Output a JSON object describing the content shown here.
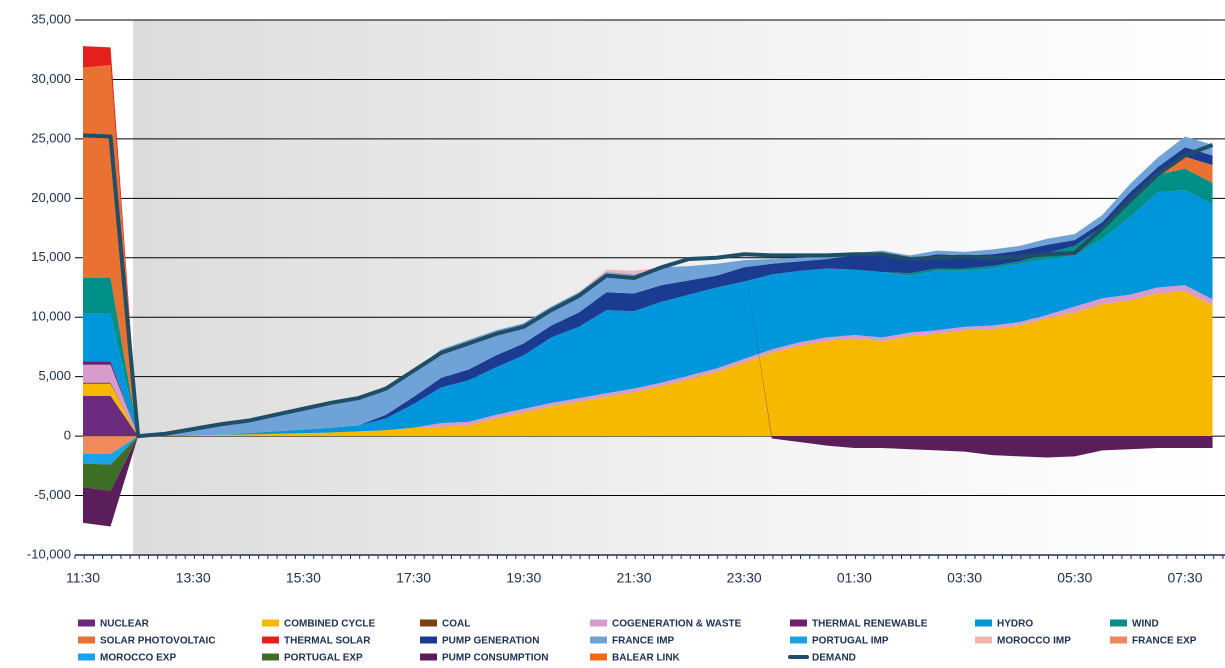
{
  "chart_data": {
    "type": "area",
    "categories": [
      "11:30",
      null,
      null,
      null,
      "13:30",
      null,
      null,
      null,
      "15:30",
      null,
      null,
      null,
      "17:30",
      null,
      null,
      null,
      "19:30",
      null,
      null,
      null,
      "21:30",
      null,
      null,
      null,
      "23:30",
      null,
      null,
      null,
      "01:30",
      null,
      null,
      null,
      "03:30",
      null,
      null,
      null,
      "05:30",
      null,
      null,
      null,
      "07:30",
      null
    ],
    "ylim": [
      -10000,
      35000
    ],
    "yticks": [
      {
        "value": -10000,
        "label": "-10,000"
      },
      {
        "value": -5000,
        "label": "-5,000"
      },
      0,
      {
        "value": 5000,
        "label": "5,000"
      },
      {
        "value": 10000,
        "label": "10,000"
      },
      {
        "value": 15000,
        "label": "15,000"
      },
      {
        "value": 20000,
        "label": "20,000"
      },
      {
        "value": 25000,
        "label": "25,000"
      },
      {
        "value": 30000,
        "label": "30,000"
      },
      {
        "value": 35000,
        "label": "35,000"
      }
    ],
    "grid": true,
    "legend": "bottom",
    "series": [
      {
        "name": "NUCLEAR",
        "color": "#6a2a7e",
        "values": [
          3400,
          3400,
          0,
          0,
          0,
          0,
          0,
          0,
          0,
          0,
          0,
          0,
          0,
          0,
          0,
          0,
          0,
          0,
          0,
          0,
          0,
          0,
          0,
          0,
          0,
          0,
          0,
          0,
          0,
          0,
          0,
          0,
          0,
          0,
          0,
          0,
          0,
          0,
          0,
          0,
          0,
          0
        ]
      },
      {
        "name": "COMBINED CYCLE",
        "color": "#f7b900",
        "values": [
          1000,
          1000,
          0,
          0,
          50,
          100,
          150,
          200,
          250,
          300,
          400,
          500,
          700,
          800,
          900,
          1500,
          2000,
          2500,
          2900,
          3300,
          3700,
          4200,
          4800,
          5400,
          6200,
          7000,
          7600,
          8000,
          8200,
          8000,
          8400,
          8600,
          8900,
          9000,
          9300,
          9900,
          10400,
          11100,
          11400,
          12000,
          12200,
          11000
        ]
      },
      {
        "name": "COAL",
        "color": "#7b3f10",
        "values": [
          100,
          100,
          0,
          0,
          0,
          0,
          0,
          0,
          0,
          0,
          0,
          0,
          0,
          0,
          0,
          0,
          0,
          0,
          0,
          0,
          0,
          0,
          0,
          0,
          0,
          0,
          0,
          0,
          0,
          0,
          0,
          0,
          0,
          0,
          0,
          0,
          0,
          0,
          0,
          0,
          0,
          0
        ]
      },
      {
        "name": "COGENERATION & WASTE",
        "color": "#d59ccd",
        "values": [
          1500,
          1500,
          0,
          0,
          0,
          0,
          0,
          0,
          0,
          0,
          0,
          0,
          0,
          300,
          300,
          300,
          300,
          300,
          300,
          300,
          300,
          300,
          300,
          300,
          300,
          300,
          300,
          300,
          300,
          300,
          300,
          300,
          300,
          300,
          300,
          300,
          500,
          500,
          500,
          500,
          500,
          500
        ]
      },
      {
        "name": "THERMAL RENEWABLE",
        "color": "#6c1f6e",
        "values": [
          300,
          300,
          0,
          0,
          0,
          0,
          0,
          0,
          0,
          0,
          0,
          0,
          0,
          0,
          0,
          0,
          0,
          0,
          0,
          0,
          0,
          0,
          0,
          0,
          0,
          0,
          0,
          0,
          0,
          0,
          0,
          0,
          0,
          0,
          0,
          0,
          0,
          0,
          0,
          0,
          0,
          0
        ]
      },
      {
        "name": "HYDRO",
        "color": "#0096db",
        "values": [
          4000,
          4000,
          0,
          0,
          0,
          0,
          100,
          200,
          300,
          400,
          500,
          1000,
          2000,
          3000,
          3500,
          4000,
          4500,
          5500,
          6000,
          7000,
          6500,
          6800,
          6800,
          6800,
          6500,
          6300,
          6000,
          5800,
          5500,
          5500,
          4800,
          5000,
          4700,
          4800,
          4900,
          4700,
          4300,
          5000,
          6500,
          8000,
          8000,
          8000
        ]
      },
      {
        "name": "WIND",
        "color": "#008f86",
        "values": [
          3000,
          3000,
          0,
          0,
          0,
          0,
          0,
          0,
          0,
          0,
          0,
          0,
          0,
          0,
          0,
          0,
          0,
          0,
          0,
          0,
          0,
          0,
          0,
          0,
          0,
          0,
          0,
          0,
          0,
          0,
          200,
          200,
          200,
          200,
          200,
          500,
          800,
          1000,
          1500,
          1500,
          1800,
          1800
        ]
      },
      {
        "name": "SOLAR PHOTOVOLTAIC",
        "color": "#e97132",
        "values": [
          17700,
          17900,
          0,
          0,
          0,
          0,
          0,
          0,
          0,
          0,
          0,
          0,
          0,
          0,
          0,
          0,
          0,
          0,
          0,
          0,
          0,
          0,
          0,
          0,
          0,
          0,
          0,
          0,
          0,
          0,
          0,
          0,
          0,
          0,
          0,
          0,
          0,
          0,
          0,
          0,
          1000,
          1500
        ]
      },
      {
        "name": "THERMAL SOLAR",
        "color": "#e3211c",
        "values": [
          1800,
          1500,
          0,
          0,
          0,
          0,
          0,
          0,
          0,
          0,
          0,
          0,
          0,
          0,
          0,
          0,
          0,
          0,
          0,
          0,
          0,
          0,
          0,
          0,
          0,
          0,
          0,
          0,
          0,
          0,
          0,
          0,
          0,
          0,
          0,
          0,
          0,
          0,
          0,
          0,
          0,
          0
        ]
      },
      {
        "name": "PUMP GENERATION",
        "color": "#1a3b8f",
        "values": [
          0,
          0,
          0,
          0,
          0,
          0,
          0,
          0,
          0,
          0,
          0,
          300,
          600,
          800,
          900,
          1000,
          1000,
          1000,
          1200,
          1500,
          1500,
          1400,
          1200,
          1000,
          1200,
          900,
          800,
          800,
          1200,
          1500,
          1200,
          1200,
          1100,
          1000,
          900,
          700,
          500,
          400,
          600,
          600,
          800,
          800
        ]
      },
      {
        "name": "FRANCE IMP",
        "color": "#6fa3d8",
        "values": [
          0,
          0,
          0,
          200,
          550,
          900,
          1050,
          1400,
          1750,
          2100,
          2300,
          2200,
          2200,
          2400,
          2500,
          2100,
          1700,
          1600,
          1700,
          1700,
          1600,
          1500,
          1200,
          1000,
          600,
          400,
          300,
          200,
          200,
          300,
          300,
          300,
          300,
          400,
          400,
          500,
          500,
          600,
          700,
          800,
          900,
          900
        ]
      },
      {
        "name": "PORTUGAL IMP",
        "color": "#1ea0e6",
        "values": [
          0,
          0,
          0,
          0,
          0,
          0,
          0,
          0,
          0,
          0,
          0,
          0,
          0,
          0,
          0,
          0,
          0,
          0,
          0,
          0,
          0,
          0,
          0,
          0,
          0,
          0,
          0,
          0,
          0,
          0,
          0,
          0,
          0,
          0,
          0,
          0,
          0,
          0,
          0,
          0,
          0,
          0
        ]
      },
      {
        "name": "MOROCCO IMP",
        "color": "#f4b3b3",
        "values": [
          0,
          0,
          0,
          0,
          0,
          0,
          0,
          0,
          0,
          0,
          0,
          0,
          0,
          0,
          0,
          0,
          0,
          0,
          0,
          200,
          300,
          0,
          0,
          0,
          0,
          0,
          0,
          0,
          0,
          0,
          0,
          0,
          0,
          0,
          0,
          0,
          0,
          0,
          0,
          0,
          0,
          0
        ]
      },
      {
        "name": "FRANCE EXP",
        "color": "#f08a5d",
        "values": [
          -1500,
          -1500,
          0,
          0,
          0,
          0,
          0,
          0,
          0,
          0,
          0,
          0,
          0,
          0,
          0,
          0,
          0,
          0,
          0,
          0,
          0,
          0,
          0,
          0,
          0,
          0,
          0,
          0,
          0,
          0,
          0,
          0,
          0,
          0,
          0,
          0,
          0,
          0,
          0,
          0,
          0,
          0
        ]
      },
      {
        "name": "MOROCCO EXP",
        "color": "#1aa3e8",
        "values": [
          -800,
          -900,
          0,
          0,
          0,
          0,
          0,
          0,
          0,
          0,
          0,
          0,
          0,
          0,
          0,
          0,
          0,
          0,
          0,
          0,
          0,
          0,
          0,
          0,
          0,
          0,
          0,
          0,
          0,
          0,
          0,
          0,
          0,
          0,
          0,
          0,
          0,
          0,
          0,
          0,
          0,
          0
        ]
      },
      {
        "name": "PORTUGAL EXP",
        "color": "#3e6d25",
        "values": [
          -2000,
          -2200,
          0,
          0,
          0,
          0,
          0,
          0,
          0,
          0,
          0,
          0,
          0,
          0,
          0,
          0,
          0,
          0,
          0,
          0,
          0,
          0,
          0,
          0,
          0,
          0,
          0,
          0,
          0,
          0,
          0,
          0,
          0,
          0,
          0,
          0,
          0,
          0,
          0,
          0,
          0,
          0
        ]
      },
      {
        "name": "PUMP CONSUMPTION",
        "color": "#5a1f5a",
        "values": [
          -3000,
          -3000,
          0,
          0,
          0,
          0,
          0,
          0,
          0,
          0,
          0,
          0,
          0,
          0,
          0,
          0,
          0,
          0,
          0,
          0,
          0,
          0,
          0,
          0,
          0,
          -200,
          -500,
          -800,
          -1000,
          -1000,
          -1100,
          -1200,
          -1300,
          -1600,
          -1700,
          -1800,
          -1700,
          -1200,
          -1100,
          -1000,
          -1000,
          -1000
        ]
      },
      {
        "name": "BALEAR LINK",
        "color": "#f06a1a",
        "values": [
          0,
          0,
          0,
          0,
          0,
          0,
          0,
          0,
          0,
          0,
          0,
          0,
          0,
          0,
          0,
          0,
          0,
          0,
          0,
          0,
          0,
          0,
          0,
          0,
          0,
          0,
          0,
          0,
          0,
          0,
          0,
          0,
          0,
          0,
          0,
          0,
          0,
          0,
          0,
          0,
          0,
          0
        ]
      },
      {
        "name": "DEMAND",
        "color": "#1f4e66",
        "type": "line",
        "values": [
          25300,
          25200,
          0,
          200,
          600,
          1000,
          1300,
          1800,
          2300,
          2800,
          3200,
          4000,
          5500,
          7000,
          7800,
          8600,
          9200,
          10600,
          11800,
          13500,
          13300,
          14200,
          14900,
          15000,
          15300,
          15200,
          15200,
          15200,
          15300,
          15300,
          14900,
          15000,
          15100,
          15000,
          15100,
          15300,
          15400,
          17500,
          19800,
          22000,
          23600,
          24500
        ]
      }
    ]
  }
}
